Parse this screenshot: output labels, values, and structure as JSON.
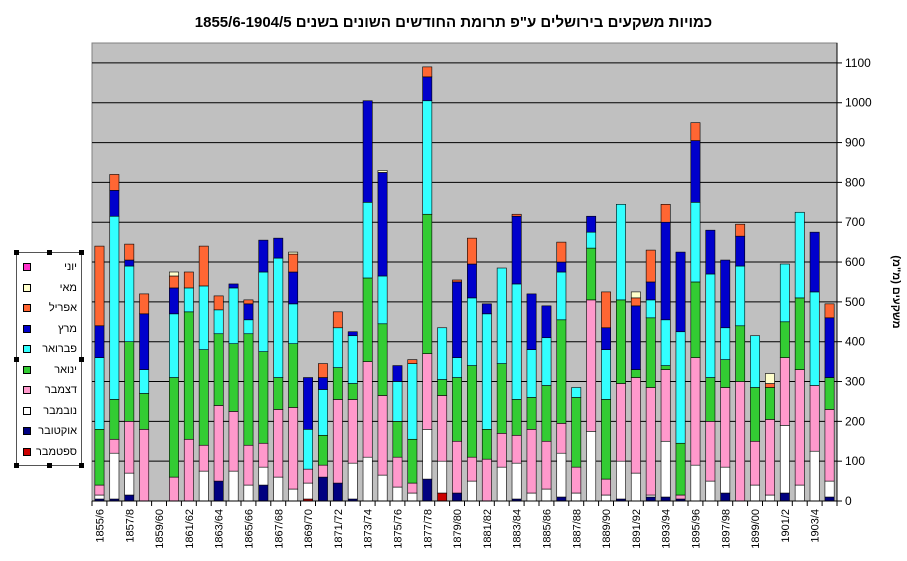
{
  "chart_data": {
    "type": "bar",
    "stacked": true,
    "title": "כמויות משקעים בירושלים ע\"פ תרומת החודשים השונים בשנים 1855/6-1904/5",
    "ylabel": "משקעים (מ\"מ)",
    "xlabel": "",
    "ylim": [
      0,
      1150
    ],
    "yticks": [
      0,
      100,
      200,
      300,
      400,
      500,
      600,
      700,
      800,
      900,
      1000,
      1100
    ],
    "grid": true,
    "plot_background": "#c0c0c0",
    "legend_position": "left",
    "categories": [
      "1855/6",
      "1856/7",
      "1857/8",
      "1858/9",
      "1859/60",
      "1860/1",
      "1861/62",
      "1862/3",
      "1863/64",
      "1864/5",
      "1865/66",
      "1866/7",
      "1867/68",
      "1868/9",
      "1869/70",
      "1870/1",
      "1871/72",
      "1872/3",
      "1873/74",
      "1874/5",
      "1875/76",
      "1876/7",
      "1877/78",
      "1878/9",
      "1879/80",
      "1880/1",
      "1881/82",
      "1882/3",
      "1883/84",
      "1884/5",
      "1885/86",
      "1886/7",
      "1887/88",
      "1888/9",
      "1889/90",
      "1890/1",
      "1891/92",
      "1892/3",
      "1893/94",
      "1894/5",
      "1895/96",
      "1896/7",
      "1897/98",
      "1898/9",
      "1899/00",
      "1900/1",
      "1901/2",
      "1902/3",
      "1903/4",
      "1904/5"
    ],
    "tick_labels": [
      "1855/6",
      "1857/8",
      "1859/60",
      "1861/62",
      "1863/64",
      "1865/66",
      "1867/68",
      "1869/70",
      "1871/72",
      "1873/74",
      "1875/76",
      "1877/78",
      "1879/80",
      "1881/82",
      "1883/84",
      "1885/86",
      "1887/88",
      "1889/90",
      "1891/92",
      "1893/94",
      "1895/96",
      "1897/98",
      "1899/00",
      "1901/2",
      "1903/4"
    ],
    "series": [
      {
        "name": "ספטמבר",
        "color": "#cc0000",
        "values": [
          0,
          0,
          0,
          0,
          0,
          0,
          0,
          0,
          0,
          0,
          0,
          0,
          0,
          0,
          5,
          0,
          0,
          0,
          0,
          0,
          0,
          0,
          0,
          20,
          0,
          0,
          0,
          0,
          0,
          0,
          0,
          0,
          0,
          0,
          0,
          0,
          0,
          0,
          0,
          0,
          0,
          0,
          0,
          0,
          0,
          0,
          0,
          0,
          0,
          0
        ]
      },
      {
        "name": "אוקטובר",
        "color": "#000080",
        "values": [
          5,
          5,
          15,
          0,
          0,
          0,
          0,
          0,
          50,
          0,
          0,
          40,
          0,
          0,
          0,
          60,
          45,
          5,
          0,
          0,
          0,
          0,
          55,
          0,
          20,
          0,
          0,
          0,
          5,
          0,
          0,
          10,
          0,
          0,
          0,
          5,
          0,
          10,
          10,
          5,
          0,
          0,
          20,
          0,
          0,
          0,
          20,
          0,
          0,
          10
        ]
      },
      {
        "name": "נובמבר",
        "color": "#ffffff",
        "values": [
          10,
          115,
          55,
          0,
          0,
          0,
          0,
          75,
          0,
          75,
          40,
          45,
          60,
          30,
          40,
          0,
          0,
          90,
          110,
          65,
          35,
          20,
          125,
          80,
          0,
          50,
          0,
          85,
          90,
          20,
          30,
          110,
          20,
          175,
          15,
          95,
          70,
          5,
          140,
          0,
          90,
          50,
          65,
          0,
          40,
          15,
          170,
          40,
          125,
          40
        ]
      },
      {
        "name": "דצמבר",
        "color": "#ff99cc",
        "values": [
          25,
          35,
          130,
          180,
          0,
          60,
          155,
          65,
          190,
          150,
          100,
          60,
          170,
          205,
          35,
          30,
          210,
          160,
          240,
          200,
          75,
          25,
          190,
          165,
          130,
          60,
          105,
          85,
          70,
          160,
          120,
          75,
          65,
          330,
          40,
          195,
          240,
          270,
          180,
          10,
          270,
          150,
          200,
          300,
          110,
          190,
          170,
          290,
          165,
          180
        ]
      },
      {
        "name": "ינואר",
        "color": "#33cc33",
        "values": [
          140,
          100,
          200,
          90,
          0,
          250,
          320,
          240,
          180,
          170,
          280,
          230,
          80,
          160,
          0,
          75,
          80,
          40,
          210,
          180,
          90,
          110,
          350,
          40,
          160,
          230,
          75,
          175,
          90,
          80,
          140,
          260,
          175,
          130,
          200,
          210,
          20,
          175,
          10,
          130,
          190,
          110,
          70,
          140,
          135,
          80,
          90,
          180,
          0,
          80
        ]
      },
      {
        "name": "פברואר",
        "color": "#33ffff",
        "values": [
          180,
          460,
          190,
          60,
          0,
          160,
          60,
          160,
          60,
          140,
          35,
          200,
          300,
          100,
          100,
          115,
          100,
          120,
          190,
          120,
          100,
          190,
          285,
          130,
          50,
          170,
          290,
          240,
          290,
          120,
          120,
          120,
          25,
          40,
          125,
          240,
          0,
          45,
          115,
          280,
          200,
          260,
          80,
          150,
          130,
          0,
          145,
          215,
          235,
          0
        ]
      },
      {
        "name": "מרץ",
        "color": "#0000cc",
        "values": [
          80,
          65,
          15,
          140,
          0,
          65,
          0,
          0,
          0,
          10,
          40,
          80,
          50,
          80,
          130,
          30,
          0,
          10,
          255,
          260,
          40,
          0,
          60,
          0,
          190,
          85,
          25,
          0,
          170,
          140,
          80,
          25,
          0,
          40,
          55,
          0,
          160,
          45,
          245,
          200,
          155,
          110,
          170,
          75,
          0,
          0,
          0,
          0,
          150,
          150
        ]
      },
      {
        "name": "אפריל",
        "color": "#ff6633",
        "values": [
          200,
          40,
          40,
          50,
          0,
          30,
          40,
          100,
          35,
          0,
          10,
          0,
          0,
          45,
          0,
          35,
          40,
          0,
          0,
          0,
          0,
          10,
          25,
          0,
          5,
          65,
          0,
          0,
          5,
          0,
          0,
          50,
          0,
          0,
          90,
          0,
          20,
          80,
          45,
          0,
          45,
          0,
          0,
          30,
          0,
          10,
          0,
          0,
          0,
          35
        ]
      },
      {
        "name": "מאי",
        "color": "#ffffcc",
        "values": [
          0,
          0,
          0,
          0,
          0,
          10,
          0,
          0,
          0,
          0,
          0,
          0,
          0,
          5,
          0,
          0,
          0,
          0,
          0,
          5,
          0,
          0,
          0,
          0,
          0,
          0,
          0,
          0,
          0,
          0,
          0,
          0,
          0,
          0,
          0,
          0,
          15,
          0,
          0,
          0,
          0,
          0,
          0,
          0,
          0,
          25,
          0,
          0,
          0,
          0
        ]
      },
      {
        "name": "יוני",
        "color": "#ff33cc",
        "values": [
          0,
          0,
          0,
          0,
          0,
          0,
          0,
          0,
          0,
          0,
          0,
          0,
          0,
          0,
          0,
          0,
          0,
          0,
          0,
          0,
          0,
          0,
          0,
          0,
          0,
          0,
          0,
          0,
          0,
          0,
          0,
          0,
          0,
          0,
          0,
          0,
          0,
          0,
          0,
          0,
          0,
          0,
          0,
          0,
          0,
          0,
          0,
          0,
          0,
          0
        ]
      }
    ]
  }
}
